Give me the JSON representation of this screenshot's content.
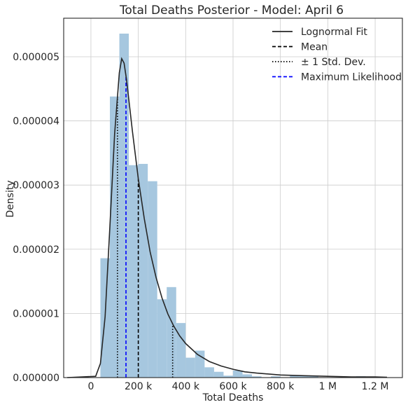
{
  "chart_data": {
    "type": "histogram",
    "title": "Total Deaths Posterior - Model: April 6",
    "xlabel": "Total Deaths",
    "ylabel": "Density",
    "xlim": [
      -115000,
      1315000
    ],
    "ylim": [
      0,
      5.6e-06
    ],
    "grid": true,
    "legend_position": "top-right",
    "x_ticks": [
      {
        "value": 0,
        "label": "0"
      },
      {
        "value": 200000,
        "label": "200 k"
      },
      {
        "value": 400000,
        "label": "400 k"
      },
      {
        "value": 600000,
        "label": "600 k"
      },
      {
        "value": 800000,
        "label": "800 k"
      },
      {
        "value": 1000000,
        "label": "1 M"
      },
      {
        "value": 1200000,
        "label": "1.2 M"
      }
    ],
    "y_ticks": [
      {
        "value": 0,
        "label": "0.000000"
      },
      {
        "value": 1e-06,
        "label": "0.000001"
      },
      {
        "value": 2e-06,
        "label": "0.000002"
      },
      {
        "value": 3e-06,
        "label": "0.000003"
      },
      {
        "value": 4e-06,
        "label": "0.000004"
      },
      {
        "value": 5e-06,
        "label": "0.000005"
      }
    ],
    "histogram": {
      "bin_width": 40000,
      "bins": [
        {
          "start": 40000,
          "density": 1.86e-06
        },
        {
          "start": 80000,
          "density": 4.38e-06
        },
        {
          "start": 120000,
          "density": 5.36e-06
        },
        {
          "start": 160000,
          "density": 3.31e-06
        },
        {
          "start": 200000,
          "density": 3.33e-06
        },
        {
          "start": 240000,
          "density": 3.06e-06
        },
        {
          "start": 280000,
          "density": 1.22e-06
        },
        {
          "start": 320000,
          "density": 1.41e-06
        },
        {
          "start": 360000,
          "density": 8.5e-07
        },
        {
          "start": 400000,
          "density": 3.1e-07
        },
        {
          "start": 440000,
          "density": 4.2e-07
        },
        {
          "start": 480000,
          "density": 1.6e-07
        },
        {
          "start": 520000,
          "density": 9e-08
        },
        {
          "start": 560000,
          "density": 3e-08
        },
        {
          "start": 600000,
          "density": 1.1e-07
        },
        {
          "start": 640000,
          "density": 5e-08
        },
        {
          "start": 680000,
          "density": 2e-08
        },
        {
          "start": 760000,
          "density": 2e-08
        },
        {
          "start": 840000,
          "density": 3e-08
        },
        {
          "start": 880000,
          "density": 3e-08
        },
        {
          "start": 920000,
          "density": 3e-08
        },
        {
          "start": 1120000,
          "density": 2e-08
        },
        {
          "start": 1160000,
          "density": 1e-08
        }
      ]
    },
    "lognormal_fit": {
      "x": [
        -100000,
        20000,
        40000,
        60000,
        80000,
        100000,
        120000,
        130000,
        140000,
        150000,
        160000,
        175000,
        200000,
        225000,
        250000,
        275000,
        300000,
        325000,
        350000,
        375000,
        400000,
        450000,
        500000,
        550000,
        600000,
        650000,
        700000,
        800000,
        900000,
        1000000,
        1100000,
        1200000,
        1250000
      ],
      "y": [
        0,
        2e-08,
        2.2e-07,
        9.5e-07,
        2.35e-06,
        3.8e-06,
        4.75e-06,
        4.97e-06,
        4.9e-06,
        4.65e-06,
        4.33e-06,
        3.84e-06,
        3.1e-06,
        2.48e-06,
        1.96e-06,
        1.56e-06,
        1.24e-06,
        9.9e-07,
        8e-07,
        6.5e-07,
        5.3e-07,
        3.6e-07,
        2.5e-07,
        1.8e-07,
        1.3e-07,
        9e-08,
        7e-08,
        4e-08,
        3e-08,
        2e-08,
        1e-08,
        1e-08,
        5e-09
      ]
    },
    "vertical_lines": [
      {
        "name": "mean",
        "x": 200000,
        "style": "dashed",
        "color": "#000000"
      },
      {
        "name": "std-low",
        "x": 112000,
        "style": "dotted",
        "color": "#000000"
      },
      {
        "name": "std-high",
        "x": 345000,
        "style": "dotted",
        "color": "#000000"
      },
      {
        "name": "max-likelihood",
        "x": 148000,
        "style": "dashed",
        "color": "#0000ff"
      }
    ],
    "legend": [
      {
        "label": "Lognormal Fit",
        "style": "solid",
        "color": "#262626"
      },
      {
        "label": "Mean",
        "style": "dashed",
        "color": "#000000"
      },
      {
        "label": "± 1 Std. Dev.",
        "style": "dotted",
        "color": "#000000"
      },
      {
        "label": "Maximum Likelihood",
        "style": "dashed",
        "color": "#0000ff"
      }
    ],
    "colors": {
      "bar_fill": "#a6c7df",
      "grid": "#cccccc",
      "frame": "#262626",
      "fit_line": "#262626"
    }
  }
}
